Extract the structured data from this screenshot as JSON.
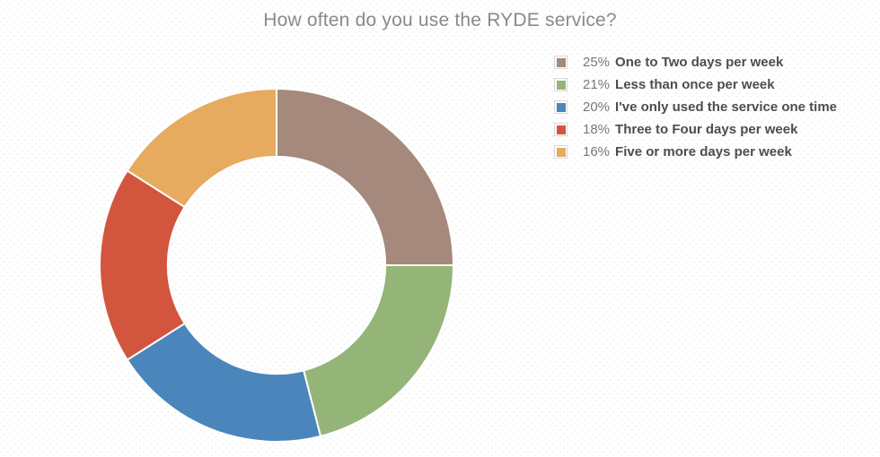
{
  "chart_data": {
    "type": "pie",
    "variant": "donut",
    "title": "How often do you use the RYDE service?",
    "start_angle_deg": 0,
    "direction": "clockwise",
    "inner_radius_ratio": 0.615,
    "legend_position": "top-right",
    "value_format": "percent",
    "grid": false,
    "segments": [
      {
        "label": "One to Two days per week",
        "value": 25,
        "color": "#a5897c"
      },
      {
        "label": "Less than once per week",
        "value": 21,
        "color": "#94b577"
      },
      {
        "label": "I've only used the service one time",
        "value": 20,
        "color": "#4a86bb"
      },
      {
        "label": "Three to Four days per week",
        "value": 18,
        "color": "#d2553e"
      },
      {
        "label": "Five or more days per week",
        "value": 16,
        "color": "#e6ab5e"
      }
    ]
  },
  "style": {
    "title_color": "#8a8a8a",
    "percent_color": "#76787a",
    "label_color": "#4d4d4d",
    "slice_separator_color": "#ffffff",
    "legend_swatch_border_color": "#d8d8d8",
    "background_color": "#ffffff"
  }
}
